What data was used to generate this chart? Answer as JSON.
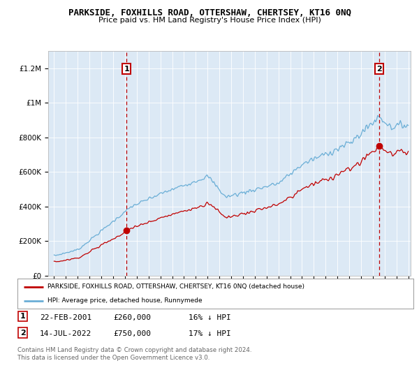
{
  "title": "PARKSIDE, FOXHILLS ROAD, OTTERSHAW, CHERTSEY, KT16 0NQ",
  "subtitle": "Price paid vs. HM Land Registry's House Price Index (HPI)",
  "background_color": "#dce9f5",
  "hpi_color": "#6aaed6",
  "price_color": "#c00000",
  "sale1_year": 2001.13,
  "sale1_price": 260000,
  "sale2_year": 2022.54,
  "sale2_price": 750000,
  "legend_line1": "PARKSIDE, FOXHILLS ROAD, OTTERSHAW, CHERTSEY, KT16 0NQ (detached house)",
  "legend_line2": "HPI: Average price, detached house, Runnymede",
  "footnote1": "Contains HM Land Registry data © Crown copyright and database right 2024.",
  "footnote2": "This data is licensed under the Open Government Licence v3.0.",
  "ylim_max": 1300000,
  "xmin": 1994.5,
  "xmax": 2025.2
}
